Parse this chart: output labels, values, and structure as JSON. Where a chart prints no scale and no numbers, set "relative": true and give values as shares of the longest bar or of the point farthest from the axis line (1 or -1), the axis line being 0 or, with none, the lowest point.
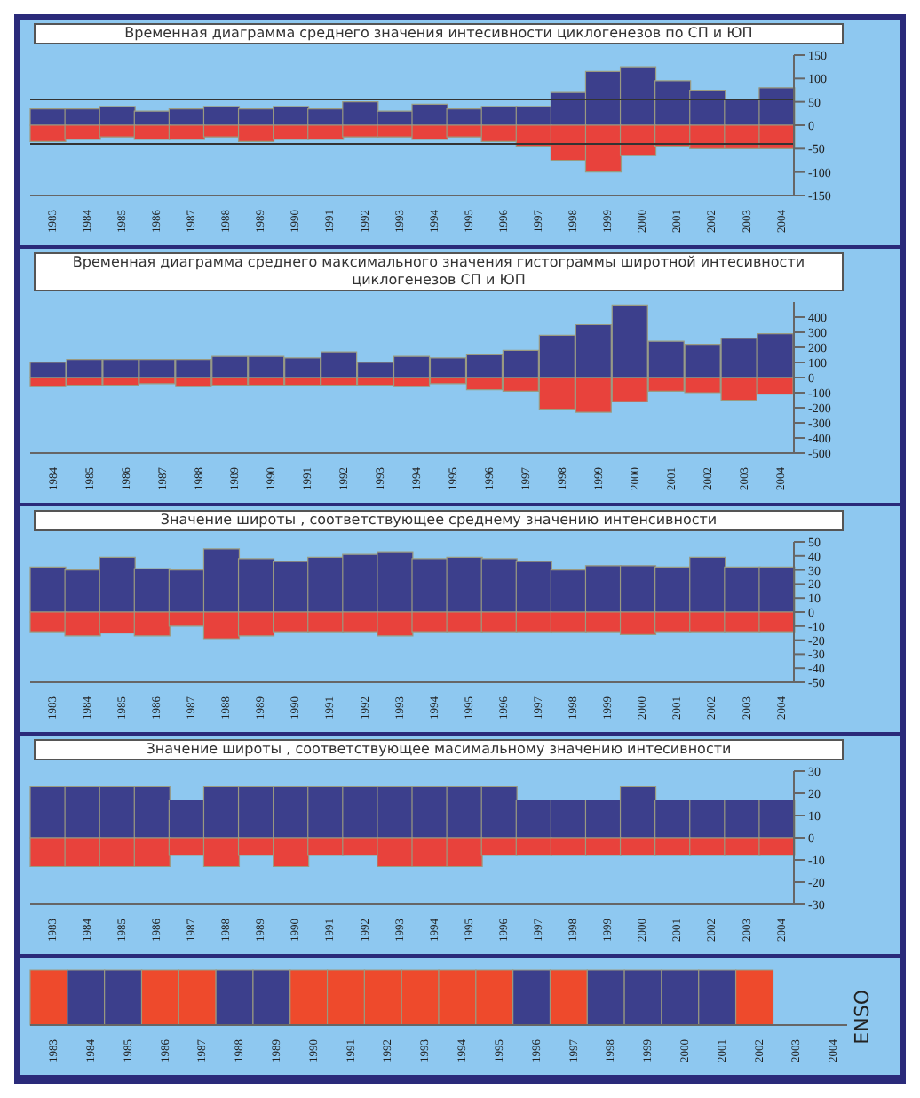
{
  "chart_data": [
    {
      "type": "bar",
      "title": "Временная диаграмма среднего значения интесивности циклогенезов по СП и ЮП",
      "categories": [
        "1983",
        "1984",
        "1985",
        "1986",
        "1987",
        "1988",
        "1989",
        "1990",
        "1991",
        "1992",
        "1993",
        "1994",
        "1995",
        "1996",
        "1997",
        "1998",
        "1999",
        "2000",
        "2001",
        "2002",
        "2003",
        "2004"
      ],
      "stacked": true,
      "ylim": [
        -150,
        150
      ],
      "yticks": [
        -150,
        -100,
        -50,
        0,
        50,
        100,
        150
      ],
      "series": [
        {
          "color": "#3c3f8c",
          "values": [
            35,
            35,
            40,
            30,
            35,
            40,
            35,
            40,
            35,
            50,
            30,
            45,
            35,
            40,
            40,
            70,
            115,
            125,
            95,
            75,
            55,
            80
          ]
        },
        {
          "color": "#e8423c",
          "values": [
            -35,
            -30,
            -25,
            -30,
            -30,
            -25,
            -35,
            -30,
            -30,
            -25,
            -25,
            -30,
            -25,
            -35,
            -45,
            -75,
            -100,
            -65,
            -45,
            -50,
            -50,
            -50
          ]
        }
      ],
      "ref_lines": [
        {
          "axis": "y",
          "value": 55,
          "color": "#333333"
        },
        {
          "axis": "y",
          "value": -40,
          "color": "#333333"
        }
      ]
    },
    {
      "type": "bar",
      "title": "Временная диаграмма среднего  максимального значения гистограммы широтной интесивности циклогенезов СП и ЮП",
      "categories": [
        "1984",
        "1985",
        "1986",
        "1987",
        "1988",
        "1989",
        "1990",
        "1991",
        "1992",
        "1993",
        "1994",
        "1995",
        "1996",
        "1997",
        "1998",
        "1999",
        "2000",
        "2001",
        "2002",
        "2003",
        "2004"
      ],
      "stacked": true,
      "ylim": [
        -500,
        500
      ],
      "yticks": [
        -500,
        -400,
        -300,
        -200,
        -100,
        0,
        100,
        200,
        300,
        400
      ],
      "series": [
        {
          "color": "#3c3f8c",
          "values": [
            100,
            120,
            120,
            120,
            120,
            140,
            140,
            130,
            170,
            100,
            140,
            130,
            150,
            180,
            280,
            350,
            480,
            240,
            220,
            260,
            290
          ]
        },
        {
          "color": "#e8423c",
          "values": [
            -60,
            -50,
            -50,
            -40,
            -60,
            -50,
            -50,
            -50,
            -50,
            -50,
            -60,
            -40,
            -80,
            -90,
            -210,
            -230,
            -160,
            -90,
            -100,
            -150,
            -110
          ]
        }
      ]
    },
    {
      "type": "bar",
      "title": "Значение широты , соответствующее среднему значению интенсивности",
      "categories": [
        "1983",
        "1984",
        "1985",
        "1986",
        "1987",
        "1988",
        "1989",
        "1990",
        "1991",
        "1992",
        "1993",
        "1994",
        "1995",
        "1996",
        "1997",
        "1998",
        "1999",
        "2000",
        "2001",
        "2002",
        "2003",
        "2004"
      ],
      "stacked": true,
      "ylim": [
        -50,
        50
      ],
      "yticks": [
        -50,
        -40,
        -30,
        -20,
        -10,
        0,
        10,
        20,
        30,
        40,
        50
      ],
      "series": [
        {
          "color": "#3c3f8c",
          "values": [
            32,
            30,
            39,
            31,
            30,
            45,
            38,
            36,
            39,
            41,
            43,
            38,
            39,
            38,
            36,
            30,
            33,
            33,
            32,
            39,
            32,
            32
          ]
        },
        {
          "color": "#e8423c",
          "values": [
            -14,
            -17,
            -15,
            -17,
            -10,
            -19,
            -17,
            -14,
            -14,
            -14,
            -17,
            -14,
            -14,
            -14,
            -14,
            -14,
            -14,
            -16,
            -14,
            -14,
            -14,
            -14
          ]
        }
      ]
    },
    {
      "type": "bar",
      "title": "Значение широты , соответствующее масимальному значению интесивности",
      "categories": [
        "1983",
        "1984",
        "1985",
        "1986",
        "1987",
        "1988",
        "1989",
        "1990",
        "1991",
        "1992",
        "1993",
        "1994",
        "1995",
        "1996",
        "1997",
        "1998",
        "1999",
        "2000",
        "2001",
        "2002",
        "2003",
        "2004"
      ],
      "stacked": true,
      "ylim": [
        -30,
        30
      ],
      "yticks": [
        -30,
        -20,
        -10,
        0,
        10,
        20,
        30
      ],
      "series": [
        {
          "color": "#3c3f8c",
          "values": [
            23,
            23,
            23,
            23,
            17,
            23,
            23,
            23,
            23,
            23,
            23,
            23,
            23,
            23,
            17,
            17,
            17,
            23,
            17,
            17,
            17,
            17
          ]
        },
        {
          "color": "#e8423c",
          "values": [
            -13,
            -13,
            -13,
            -13,
            -8,
            -13,
            -8,
            -13,
            -8,
            -8,
            -13,
            -13,
            -13,
            -8,
            -8,
            -8,
            -8,
            -8,
            -8,
            -8,
            -8,
            -8
          ]
        }
      ]
    },
    {
      "type": "bar",
      "relative": true,
      "values": [
        1,
        1,
        1,
        1,
        1,
        1,
        1,
        1,
        1,
        1,
        1,
        1,
        1,
        1,
        1,
        1,
        1,
        1,
        1,
        1,
        null,
        null
      ],
      "ylabel": "ENSO",
      "categories": [
        "1983",
        "1984",
        "1985",
        "1986",
        "1987",
        "1988",
        "1989",
        "1990",
        "1991",
        "1992",
        "1993",
        "1994",
        "1995",
        "1996",
        "1997",
        "1998",
        "1999",
        "2000",
        "2001",
        "2002",
        "2003",
        "2004"
      ],
      "colors": [
        "#ee4a2c",
        "#3c3f8c",
        "#3c3f8c",
        "#ee4a2c",
        "#ee4a2c",
        "#3c3f8c",
        "#3c3f8c",
        "#ee4a2c",
        "#ee4a2c",
        "#ee4a2c",
        "#ee4a2c",
        "#ee4a2c",
        "#ee4a2c",
        "#3c3f8c",
        "#ee4a2c",
        "#3c3f8c",
        "#3c3f8c",
        "#3c3f8c",
        "#3c3f8c",
        "#ee4a2c",
        "#3c3f8c",
        "#3c3f8c"
      ]
    }
  ]
}
